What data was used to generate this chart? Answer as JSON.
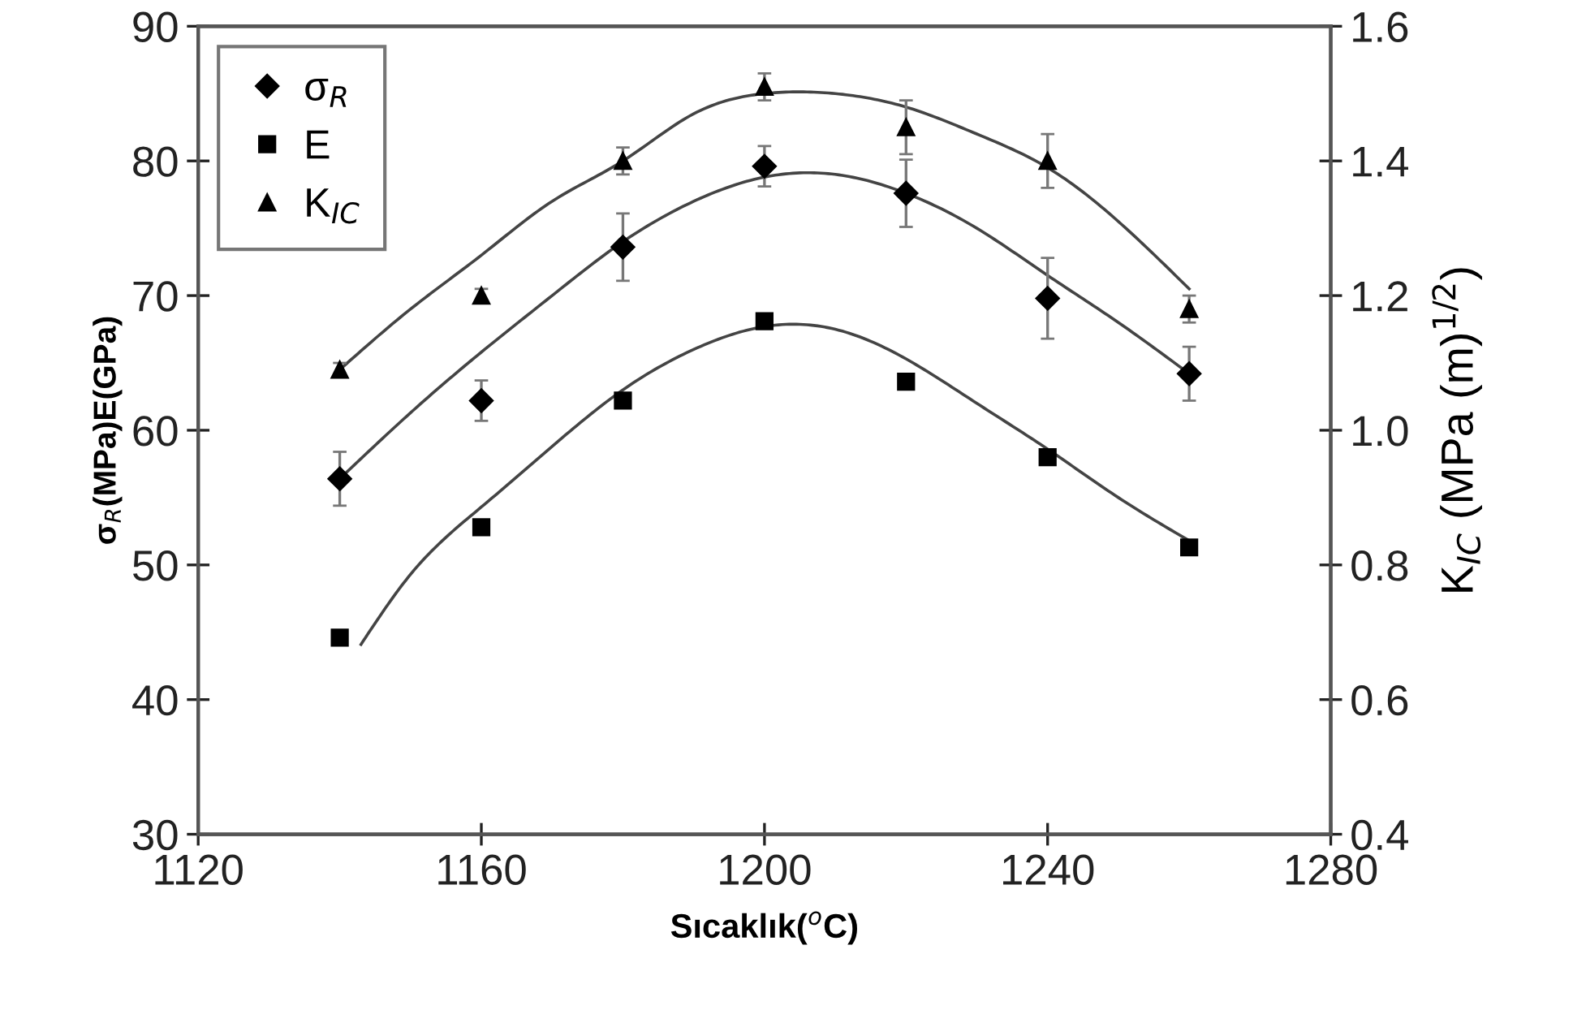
{
  "chart_data": {
    "type": "scatter",
    "xlabel": "Sıcaklık($^{o}$C)",
    "ylabel": "σ$_{R}$(MPa)E(GPa)",
    "y2label": "K$_{IC}$ (MPa (m)$^{1/2}$)",
    "x": [
      1140,
      1160,
      1180,
      1200,
      1220,
      1240,
      1260
    ],
    "xlim": [
      1120,
      1280
    ],
    "xticks": [
      1120,
      1160,
      1200,
      1240,
      1280
    ],
    "ylim": [
      30,
      90
    ],
    "yticks": [
      30,
      40,
      50,
      60,
      70,
      80,
      90
    ],
    "y2lim": [
      0.4,
      1.6
    ],
    "y2ticks": [
      {
        "value": 0.4,
        "label": "0.4"
      },
      {
        "value": 0.6,
        "label": "0.6"
      },
      {
        "value": 0.8,
        "label": "0.8"
      },
      {
        "value": 1.0,
        "label": "1.0"
      },
      {
        "value": 1.2,
        "label": "1.2"
      },
      {
        "value": 1.4,
        "label": "1.4"
      },
      {
        "value": 1.6,
        "label": "1.6"
      }
    ],
    "grid": false,
    "legend": "top left",
    "series": [
      {
        "name": "σ$_{R}$",
        "marker": "diamond",
        "color": "#000000",
        "values": [
          56.4,
          62.2,
          73.6,
          79.6,
          77.6,
          69.8,
          64.2
        ],
        "errors": [
          2.0,
          1.5,
          2.5,
          1.5,
          2.5,
          3.0,
          2.0
        ]
      },
      {
        "name": "E",
        "marker": "square",
        "color": "#000000",
        "values": [
          44.6,
          52.8,
          62.2,
          68.1,
          63.6,
          58.0,
          51.3
        ]
      },
      {
        "name": "K$_{IC}$",
        "marker": "triangle",
        "axis": "y2",
        "color": "#000000",
        "values": [
          1.09,
          1.2,
          1.4,
          1.51,
          1.45,
          1.4,
          1.18
        ],
        "errors": [
          0.01,
          0.01,
          0.02,
          0.02,
          0.04,
          0.04,
          0.02
        ]
      },
      {
        "type": "line",
        "color": "#444444",
        "marker": "none",
        "x": [
          1140,
          1150,
          1160,
          1170,
          1180,
          1190,
          1200,
          1210,
          1220,
          1230,
          1240,
          1250,
          1260
        ],
        "values": [
          56.4,
          61.3,
          65.8,
          70.0,
          74.0,
          77.0,
          78.8,
          79.0,
          77.6,
          75.0,
          71.5,
          68.0,
          64.2
        ]
      },
      {
        "type": "line",
        "color": "#444444",
        "marker": "none",
        "x": [
          1143,
          1150,
          1160,
          1170,
          1180,
          1190,
          1200,
          1210,
          1220,
          1230,
          1240,
          1250,
          1260
        ],
        "values": [
          44.1,
          49.3,
          54.3,
          58.8,
          63.0,
          66.0,
          67.7,
          67.5,
          65.3,
          62.0,
          58.6,
          55.0,
          51.8
        ]
      },
      {
        "type": "line",
        "color": "#444444",
        "marker": "none",
        "axis": "y2",
        "x": [
          1140,
          1150,
          1160,
          1170,
          1180,
          1190,
          1200,
          1210,
          1220,
          1230,
          1240,
          1250,
          1260
        ],
        "values": [
          1.09,
          1.18,
          1.26,
          1.34,
          1.4,
          1.47,
          1.5,
          1.5,
          1.48,
          1.44,
          1.39,
          1.31,
          1.21
        ]
      }
    ]
  }
}
